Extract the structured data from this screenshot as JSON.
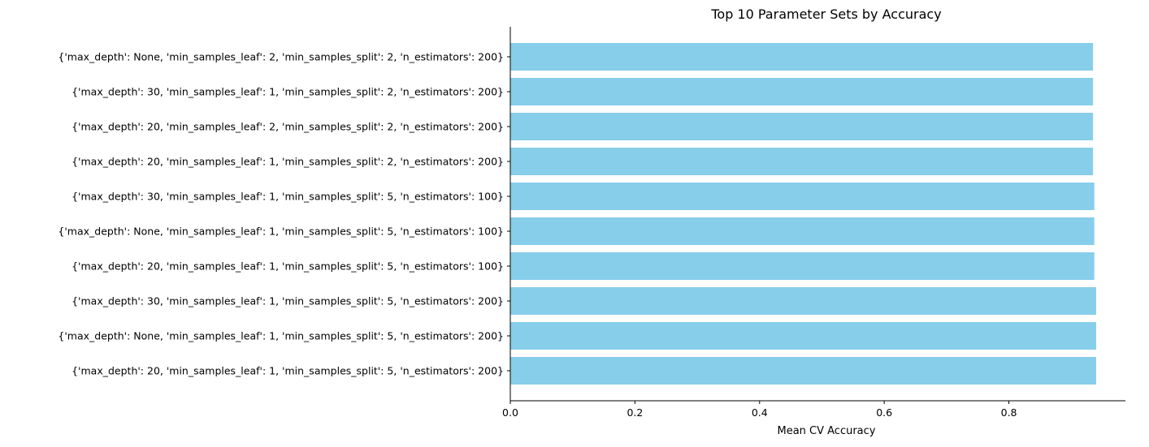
{
  "chart_data": {
    "type": "bar",
    "orientation": "horizontal",
    "title": "Top 10 Parameter Sets by Accuracy",
    "xlabel": "Mean CV Accuracy",
    "ylabel": "",
    "xlim": [
      0,
      0.987
    ],
    "xticks": [
      0.0,
      0.2,
      0.4,
      0.6,
      0.8
    ],
    "xtick_labels": [
      "0.0",
      "0.2",
      "0.4",
      "0.6",
      "0.8"
    ],
    "grid": false,
    "bar_color": "#87ceeb",
    "categories": [
      "{'max_depth': None, 'min_samples_leaf': 2, 'min_samples_split': 2, 'n_estimators': 200}",
      "{'max_depth': 30, 'min_samples_leaf': 1, 'min_samples_split': 2, 'n_estimators': 200}",
      "{'max_depth': 20, 'min_samples_leaf': 2, 'min_samples_split': 2, 'n_estimators': 200}",
      "{'max_depth': 20, 'min_samples_leaf': 1, 'min_samples_split': 2, 'n_estimators': 200}",
      "{'max_depth': 30, 'min_samples_leaf': 1, 'min_samples_split': 5, 'n_estimators': 100}",
      "{'max_depth': None, 'min_samples_leaf': 1, 'min_samples_split': 5, 'n_estimators': 100}",
      "{'max_depth': 20, 'min_samples_leaf': 1, 'min_samples_split': 5, 'n_estimators': 100}",
      "{'max_depth': 30, 'min_samples_leaf': 1, 'min_samples_split': 5, 'n_estimators': 200}",
      "{'max_depth': None, 'min_samples_leaf': 1, 'min_samples_split': 5, 'n_estimators': 200}",
      "{'max_depth': 20, 'min_samples_leaf': 1, 'min_samples_split': 5, 'n_estimators': 200}"
    ],
    "values": [
      0.935,
      0.935,
      0.935,
      0.935,
      0.937,
      0.937,
      0.937,
      0.94,
      0.94,
      0.94
    ]
  }
}
